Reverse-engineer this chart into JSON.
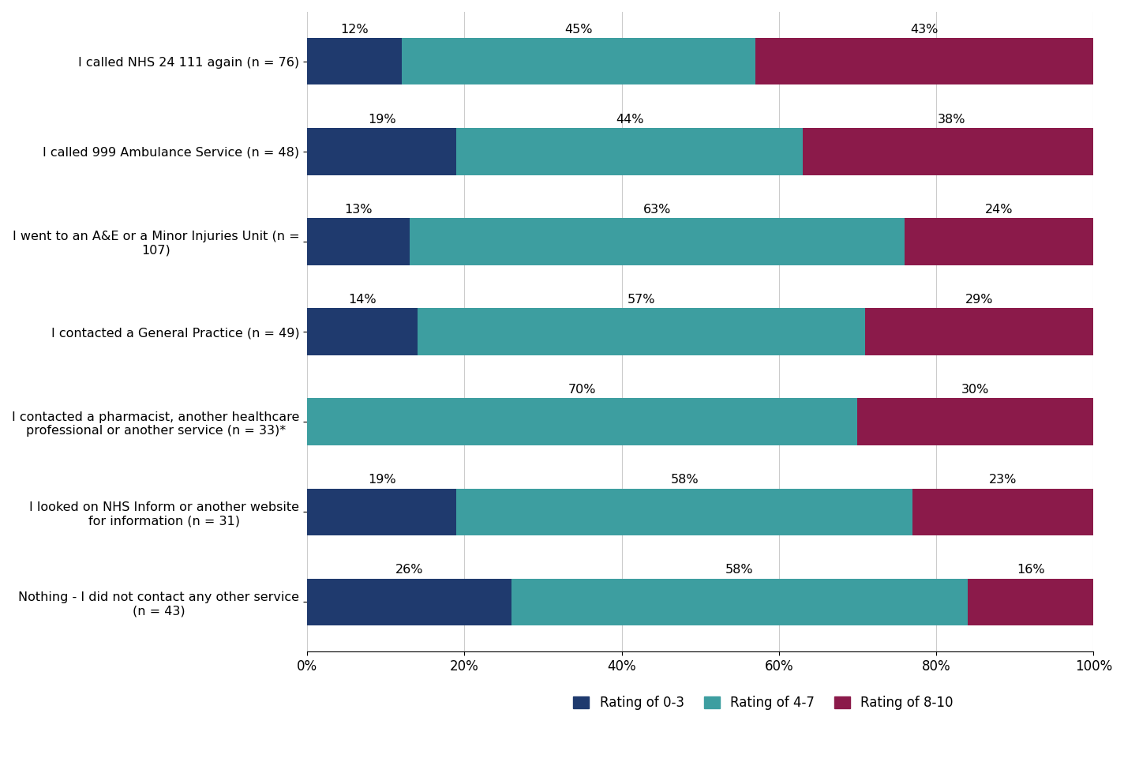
{
  "categories": [
    "I called NHS 24 111 again (n = 76)",
    "I called 999 Ambulance Service (n = 48)",
    "I went to an A&E or a Minor Injuries Unit (n =\n107)",
    "I contacted a General Practice (n = 49)",
    "I contacted a pharmacist, another healthcare\nprofessional or another service (n = 33)*",
    "I looked on NHS Inform or another website\nfor information (n = 31)",
    "Nothing - I did not contact any other service\n(n = 43)"
  ],
  "rating_0_3": [
    12,
    19,
    13,
    14,
    0,
    19,
    26
  ],
  "rating_4_7": [
    45,
    44,
    63,
    57,
    70,
    58,
    58
  ],
  "rating_8_10": [
    43,
    38,
    24,
    29,
    30,
    23,
    16
  ],
  "color_0_3": "#1f3a6e",
  "color_4_7": "#3d9ea0",
  "color_8_10": "#8b1a4a",
  "label_0_3": "Rating of 0-3",
  "label_4_7": "Rating of 4-7",
  "label_8_10": "Rating of 8-10",
  "background_color": "#ffffff",
  "bar_height": 0.52,
  "label_fontsize": 11.5,
  "tick_fontsize": 12,
  "legend_fontsize": 12,
  "annotation_fontsize": 11.5,
  "xlim": [
    0,
    100
  ]
}
